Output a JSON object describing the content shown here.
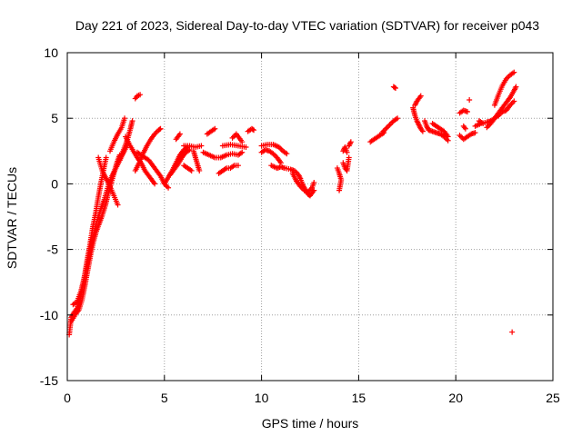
{
  "chart_data": {
    "type": "scatter",
    "title": "Day 221 of 2023, Sidereal Day-to-day VTEC variation (SDTVAR) for receiver p043",
    "xlabel": "GPS time / hours",
    "ylabel": "SDTVAR / TECUs",
    "xlim": [
      0,
      25
    ],
    "ylim": [
      -15,
      10
    ],
    "xticks": [
      0,
      5,
      10,
      15,
      20,
      25
    ],
    "yticks": [
      -15,
      -10,
      -5,
      0,
      5,
      10
    ],
    "grid": true,
    "marker": "+",
    "color": "#ff0000",
    "series": [
      {
        "name": "SDTVAR",
        "tracks": [
          [
            [
              0.1,
              -11.5
            ],
            [
              0.2,
              -10.2
            ],
            [
              0.35,
              -9.8
            ],
            [
              0.5,
              -9.5
            ],
            [
              0.7,
              -8.6
            ],
            [
              0.85,
              -7.4
            ],
            [
              1.0,
              -6.0
            ],
            [
              1.15,
              -4.8
            ],
            [
              1.3,
              -3.4
            ],
            [
              1.45,
              -2.3
            ],
            [
              1.6,
              -1.0
            ],
            [
              1.75,
              0.2
            ],
            [
              1.9,
              1.3
            ],
            [
              2.0,
              2.0
            ]
          ],
          [
            [
              0.2,
              -10.5
            ],
            [
              0.4,
              -10.0
            ],
            [
              0.6,
              -9.6
            ],
            [
              0.75,
              -8.9
            ],
            [
              0.9,
              -7.8
            ],
            [
              1.05,
              -6.6
            ],
            [
              1.2,
              -5.4
            ],
            [
              1.35,
              -4.4
            ],
            [
              1.5,
              -3.6
            ],
            [
              1.65,
              -3.0
            ],
            [
              1.8,
              -2.4
            ],
            [
              1.95,
              -1.7
            ],
            [
              2.1,
              -0.8
            ],
            [
              2.25,
              0.0
            ],
            [
              2.4,
              0.8
            ],
            [
              2.55,
              1.6
            ],
            [
              2.7,
              2.2
            ]
          ],
          [
            [
              0.3,
              -9.2
            ],
            [
              0.5,
              -9.0
            ],
            [
              0.7,
              -8.2
            ],
            [
              0.9,
              -7.0
            ],
            [
              1.1,
              -5.6
            ],
            [
              1.3,
              -4.2
            ],
            [
              1.5,
              -3.0
            ],
            [
              1.7,
              -2.0
            ],
            [
              1.9,
              -1.2
            ],
            [
              2.1,
              -0.2
            ],
            [
              2.3,
              0.6
            ],
            [
              2.5,
              1.2
            ],
            [
              2.7,
              1.8
            ],
            [
              2.9,
              2.4
            ],
            [
              3.1,
              3.0
            ]
          ],
          [
            [
              1.6,
              2.0
            ],
            [
              1.8,
              1.0
            ],
            [
              2.0,
              0.4
            ],
            [
              2.2,
              -0.2
            ],
            [
              2.4,
              -0.9
            ],
            [
              2.6,
              -1.6
            ]
          ],
          [
            [
              2.2,
              2.5
            ],
            [
              2.4,
              3.2
            ],
            [
              2.6,
              3.8
            ],
            [
              2.8,
              4.3
            ],
            [
              2.95,
              5.0
            ]
          ],
          [
            [
              2.7,
              1.8
            ],
            [
              2.9,
              2.6
            ],
            [
              3.1,
              3.4
            ],
            [
              3.25,
              4.2
            ],
            [
              3.35,
              4.8
            ]
          ],
          [
            [
              3.5,
              6.5
            ],
            [
              3.6,
              6.7
            ],
            [
              3.75,
              6.8
            ]
          ],
          [
            [
              3.0,
              3.6
            ],
            [
              3.2,
              3.0
            ],
            [
              3.4,
              2.5
            ],
            [
              3.6,
              2.0
            ],
            [
              3.8,
              1.6
            ],
            [
              4.0,
              1.0
            ],
            [
              4.2,
              0.6
            ],
            [
              4.4,
              0.2
            ],
            [
              4.5,
              0.0
            ]
          ],
          [
            [
              3.5,
              1.0
            ],
            [
              3.7,
              1.6
            ],
            [
              3.9,
              2.3
            ],
            [
              4.1,
              2.9
            ],
            [
              4.3,
              3.4
            ],
            [
              4.5,
              3.8
            ],
            [
              4.7,
              4.1
            ],
            [
              4.8,
              4.2
            ]
          ],
          [
            [
              3.6,
              2.4
            ],
            [
              3.8,
              2.2
            ],
            [
              4.0,
              2.0
            ],
            [
              4.2,
              1.8
            ],
            [
              4.4,
              1.4
            ],
            [
              4.6,
              1.0
            ],
            [
              4.8,
              0.6
            ],
            [
              5.0,
              0.0
            ],
            [
              5.2,
              -0.3
            ]
          ],
          [
            [
              5.0,
              0.0
            ],
            [
              5.2,
              0.5
            ],
            [
              5.4,
              1.0
            ],
            [
              5.6,
              1.6
            ],
            [
              5.8,
              2.2
            ],
            [
              6.0,
              2.6
            ],
            [
              6.2,
              2.8
            ]
          ],
          [
            [
              5.3,
              0.7
            ],
            [
              5.5,
              1.1
            ],
            [
              5.7,
              1.5
            ],
            [
              5.9,
              2.0
            ],
            [
              6.1,
              2.4
            ],
            [
              6.3,
              2.6
            ]
          ],
          [
            [
              5.6,
              3.4
            ],
            [
              5.7,
              3.6
            ],
            [
              5.8,
              3.8
            ]
          ],
          [
            [
              6.0,
              2.9
            ],
            [
              6.3,
              2.9
            ],
            [
              6.6,
              2.8
            ],
            [
              6.9,
              2.9
            ]
          ],
          [
            [
              6.0,
              1.4
            ],
            [
              6.2,
              1.2
            ],
            [
              6.4,
              1.0
            ]
          ],
          [
            [
              6.5,
              2.5
            ],
            [
              6.6,
              2.0
            ],
            [
              6.7,
              1.5
            ],
            [
              6.8,
              1.0
            ]
          ],
          [
            [
              7.2,
              3.8
            ],
            [
              7.4,
              4.0
            ],
            [
              7.6,
              4.2
            ]
          ],
          [
            [
              7.0,
              2.4
            ],
            [
              7.3,
              2.2
            ],
            [
              7.6,
              2.0
            ],
            [
              7.9,
              2.0
            ],
            [
              8.2,
              2.2
            ],
            [
              8.5,
              2.3
            ],
            [
              8.8,
              2.2
            ],
            [
              9.0,
              2.4
            ]
          ],
          [
            [
              7.8,
              0.8
            ],
            [
              8.0,
              1.0
            ],
            [
              8.2,
              1.2
            ],
            [
              8.4,
              1.2
            ],
            [
              8.6,
              1.4
            ],
            [
              8.8,
              1.4
            ]
          ],
          [
            [
              8.0,
              2.9
            ],
            [
              8.4,
              3.0
            ],
            [
              8.8,
              2.9
            ],
            [
              9.2,
              2.8
            ]
          ],
          [
            [
              8.5,
              3.5
            ],
            [
              8.7,
              3.8
            ],
            [
              9.0,
              3.2
            ]
          ],
          [
            [
              9.3,
              4.0
            ],
            [
              9.5,
              4.2
            ],
            [
              9.6,
              4.1
            ]
          ],
          [
            [
              10.0,
              2.4
            ],
            [
              10.2,
              2.6
            ],
            [
              10.4,
              2.5
            ],
            [
              10.6,
              2.3
            ],
            [
              10.8,
              2.0
            ],
            [
              11.0,
              1.6
            ]
          ],
          [
            [
              10.0,
              2.9
            ],
            [
              10.3,
              3.0
            ],
            [
              10.6,
              3.0
            ],
            [
              10.9,
              2.8
            ],
            [
              11.1,
              2.5
            ],
            [
              11.3,
              2.3
            ]
          ],
          [
            [
              10.5,
              1.4
            ],
            [
              10.8,
              1.2
            ],
            [
              11.0,
              1.3
            ],
            [
              11.2,
              1.2
            ],
            [
              11.5,
              1.1
            ],
            [
              11.7,
              1.0
            ],
            [
              11.9,
              0.7
            ],
            [
              12.0,
              0.4
            ],
            [
              12.1,
              0.0
            ],
            [
              12.2,
              -0.3
            ],
            [
              12.3,
              -0.6
            ],
            [
              12.4,
              -0.8
            ],
            [
              12.5,
              -0.9
            ],
            [
              12.6,
              -0.7
            ],
            [
              12.7,
              -0.5
            ]
          ],
          [
            [
              11.6,
              0.8
            ],
            [
              11.8,
              0.2
            ],
            [
              12.0,
              -0.2
            ],
            [
              12.2,
              -0.5
            ],
            [
              12.4,
              -0.6
            ],
            [
              12.6,
              -0.3
            ],
            [
              12.7,
              0.1
            ]
          ],
          [
            [
              13.9,
              1.2
            ],
            [
              14.0,
              0.8
            ],
            [
              14.1,
              0.3
            ],
            [
              14.0,
              -0.5
            ]
          ],
          [
            [
              14.2,
              1.6
            ],
            [
              14.3,
              1.2
            ],
            [
              14.4,
              1.0
            ],
            [
              14.5,
              2.0
            ]
          ],
          [
            [
              14.2,
              2.5
            ],
            [
              14.3,
              2.8
            ],
            [
              14.4,
              2.4
            ]
          ],
          [
            [
              14.5,
              2.9
            ],
            [
              14.6,
              3.2
            ]
          ],
          [
            [
              15.6,
              3.2
            ],
            [
              15.8,
              3.4
            ],
            [
              16.0,
              3.6
            ],
            [
              16.2,
              3.8
            ],
            [
              16.3,
              3.9
            ]
          ],
          [
            [
              16.2,
              3.9
            ],
            [
              16.4,
              4.2
            ],
            [
              16.6,
              4.5
            ],
            [
              16.8,
              4.8
            ],
            [
              17.0,
              5.0
            ]
          ],
          [
            [
              16.8,
              7.4
            ],
            [
              16.9,
              7.3
            ]
          ],
          [
            [
              17.9,
              6.0
            ],
            [
              18.0,
              6.3
            ],
            [
              18.1,
              6.5
            ],
            [
              18.2,
              6.7
            ]
          ],
          [
            [
              17.8,
              5.8
            ],
            [
              17.9,
              5.2
            ],
            [
              18.0,
              4.8
            ],
            [
              18.1,
              4.5
            ],
            [
              18.2,
              4.2
            ],
            [
              18.3,
              4.0
            ]
          ],
          [
            [
              18.4,
              4.8
            ],
            [
              18.5,
              4.4
            ],
            [
              18.6,
              4.1
            ],
            [
              18.8,
              4.0
            ],
            [
              19.0,
              3.9
            ],
            [
              19.2,
              3.8
            ],
            [
              19.4,
              3.6
            ],
            [
              19.6,
              3.3
            ]
          ],
          [
            [
              18.8,
              4.6
            ],
            [
              19.0,
              4.4
            ],
            [
              19.2,
              4.2
            ],
            [
              19.4,
              4.0
            ],
            [
              19.6,
              3.6
            ]
          ],
          [
            [
              20.2,
              3.7
            ],
            [
              20.4,
              3.4
            ],
            [
              20.6,
              3.6
            ],
            [
              20.8,
              3.8
            ],
            [
              21.0,
              3.9
            ]
          ],
          [
            [
              20.2,
              5.4
            ],
            [
              20.4,
              5.6
            ],
            [
              20.6,
              5.5
            ]
          ],
          [
            [
              20.7,
              6.4
            ]
          ],
          [
            [
              20.4,
              4.4
            ],
            [
              20.5,
              4.2
            ]
          ],
          [
            [
              21.0,
              4.4
            ],
            [
              21.3,
              4.6
            ],
            [
              21.6,
              4.7
            ],
            [
              21.8,
              4.8
            ],
            [
              22.0,
              5.0
            ],
            [
              22.2,
              5.2
            ],
            [
              22.4,
              5.5
            ],
            [
              22.6,
              5.6
            ],
            [
              22.8,
              6.0
            ],
            [
              23.0,
              6.3
            ]
          ],
          [
            [
              21.6,
              4.3
            ],
            [
              21.8,
              4.6
            ],
            [
              22.0,
              5.0
            ],
            [
              22.2,
              5.4
            ],
            [
              22.4,
              5.8
            ],
            [
              22.6,
              6.2
            ],
            [
              22.8,
              6.6
            ],
            [
              23.0,
              7.1
            ],
            [
              23.1,
              7.4
            ]
          ],
          [
            [
              21.2,
              4.8
            ],
            [
              21.4,
              4.6
            ]
          ],
          [
            [
              22.0,
              6.0
            ],
            [
              22.2,
              6.8
            ],
            [
              22.4,
              7.5
            ],
            [
              22.6,
              8.0
            ],
            [
              22.8,
              8.3
            ],
            [
              23.0,
              8.5
            ]
          ],
          [
            [
              22.9,
              -11.3
            ]
          ]
        ]
      }
    ]
  }
}
